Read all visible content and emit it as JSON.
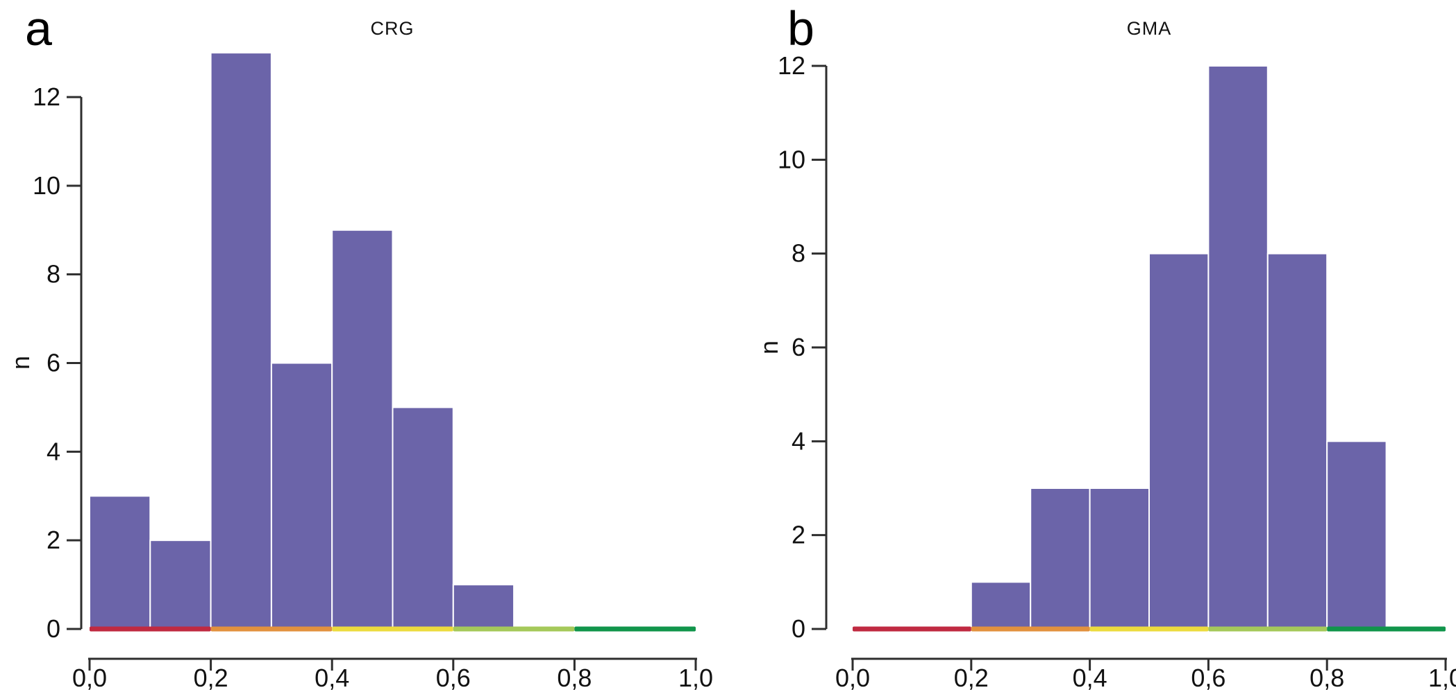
{
  "figure": {
    "background": "#ffffff",
    "axis_color": "#2e2e2e",
    "bar_color": "#6b64a9",
    "bar_border_color": "#ffffff"
  },
  "chart_data": [
    {
      "type": "bar",
      "subtype": "histogram",
      "panel_letter": "a",
      "title": "CRG",
      "xlabel": "",
      "ylabel": "n",
      "xlim": [
        0,
        1
      ],
      "ylim": [
        0,
        12
      ],
      "grid": "off",
      "legend": "none",
      "bin_width": 0.1,
      "categories": [
        "0.0-0.1",
        "0.1-0.2",
        "0.2-0.3",
        "0.3-0.4",
        "0.4-0.5",
        "0.5-0.6",
        "0.6-0.7",
        "0.7-0.8",
        "0.8-0.9",
        "0.9-1.0"
      ],
      "values": [
        3,
        2,
        13,
        6,
        9,
        5,
        1,
        0,
        0,
        0
      ],
      "x_tick_values": [
        0,
        0.2,
        0.4,
        0.6,
        0.8,
        1.0
      ],
      "x_tick_labels": [
        "0,0",
        "0,2",
        "0,4",
        "0,6",
        "0,8",
        "1,0"
      ],
      "y_tick_values": [
        0,
        2,
        4,
        6,
        8,
        10,
        12
      ],
      "y_tick_labels": [
        "0",
        "2",
        "4",
        "6",
        "8",
        "10",
        "12"
      ],
      "baseline_segments": [
        {
          "from": 0.0,
          "to": 0.2,
          "color": "#c02a41",
          "name": "red"
        },
        {
          "from": 0.2,
          "to": 0.4,
          "color": "#e2913e",
          "name": "orange"
        },
        {
          "from": 0.4,
          "to": 0.6,
          "color": "#ecdb3e",
          "name": "yellow"
        },
        {
          "from": 0.6,
          "to": 0.8,
          "color": "#a5c95a",
          "name": "yellow-green"
        },
        {
          "from": 0.8,
          "to": 1.0,
          "color": "#11954b",
          "name": "green"
        }
      ]
    },
    {
      "type": "bar",
      "subtype": "histogram",
      "panel_letter": "b",
      "title": "GMA",
      "xlabel": "",
      "ylabel": "n",
      "xlim": [
        0,
        1
      ],
      "ylim": [
        0,
        12
      ],
      "grid": "off",
      "legend": "none",
      "bin_width": 0.1,
      "categories": [
        "0.0-0.1",
        "0.1-0.2",
        "0.2-0.3",
        "0.3-0.4",
        "0.4-0.5",
        "0.5-0.6",
        "0.6-0.7",
        "0.7-0.8",
        "0.8-0.9",
        "0.9-1.0"
      ],
      "values": [
        0,
        0,
        1,
        3,
        3,
        8,
        12,
        8,
        4,
        0
      ],
      "x_tick_values": [
        0,
        0.2,
        0.4,
        0.6,
        0.8,
        1.0
      ],
      "x_tick_labels": [
        "0,0",
        "0,2",
        "0,4",
        "0,6",
        "0,8",
        "1,0"
      ],
      "y_tick_values": [
        0,
        2,
        4,
        6,
        8,
        10,
        12
      ],
      "y_tick_labels": [
        "0",
        "2",
        "4",
        "6",
        "8",
        "10",
        "12"
      ],
      "baseline_segments": [
        {
          "from": 0.0,
          "to": 0.2,
          "color": "#c02a41",
          "name": "red"
        },
        {
          "from": 0.2,
          "to": 0.4,
          "color": "#e2913e",
          "name": "orange"
        },
        {
          "from": 0.4,
          "to": 0.6,
          "color": "#ecdb3e",
          "name": "yellow"
        },
        {
          "from": 0.6,
          "to": 0.8,
          "color": "#a5c95a",
          "name": "yellow-green"
        },
        {
          "from": 0.8,
          "to": 1.0,
          "color": "#11954b",
          "name": "green"
        }
      ]
    }
  ]
}
